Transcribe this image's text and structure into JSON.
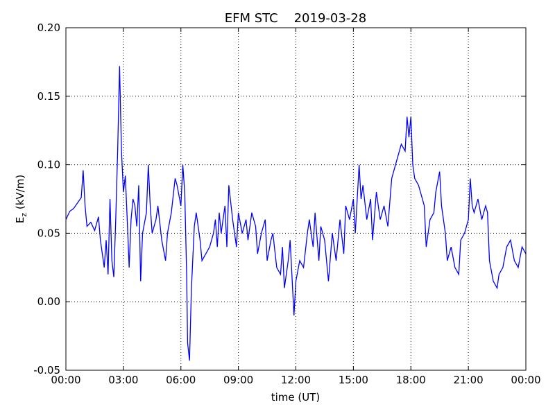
{
  "chart_data": {
    "type": "line",
    "title": "EFM STC    2019-03-28",
    "xlabel": "time (UT)",
    "ylabel": {
      "base": "E",
      "sub": "z",
      "unit": " (kV/m)"
    },
    "x": [
      0.0,
      0.2,
      0.4,
      0.6,
      0.8,
      0.9,
      1.0,
      1.1,
      1.3,
      1.5,
      1.7,
      1.8,
      2.0,
      2.1,
      2.2,
      2.3,
      2.4,
      2.5,
      2.6,
      2.7,
      2.8,
      2.9,
      3.0,
      3.1,
      3.2,
      3.3,
      3.4,
      3.5,
      3.6,
      3.7,
      3.8,
      3.9,
      4.0,
      4.2,
      4.3,
      4.4,
      4.5,
      4.7,
      4.8,
      5.0,
      5.2,
      5.3,
      5.5,
      5.7,
      5.8,
      6.0,
      6.1,
      6.2,
      6.3,
      6.35,
      6.45,
      6.55,
      6.7,
      6.8,
      6.9,
      7.0,
      7.1,
      7.3,
      7.5,
      7.7,
      7.8,
      7.9,
      8.0,
      8.1,
      8.3,
      8.4,
      8.5,
      8.7,
      8.9,
      9.0,
      9.2,
      9.4,
      9.5,
      9.7,
      9.9,
      10.0,
      10.2,
      10.4,
      10.5,
      10.7,
      10.8,
      11.0,
      11.2,
      11.3,
      11.4,
      11.6,
      11.7,
      11.9,
      12.0,
      12.2,
      12.4,
      12.6,
      12.7,
      12.9,
      13.0,
      13.2,
      13.3,
      13.5,
      13.7,
      13.9,
      14.1,
      14.3,
      14.5,
      14.6,
      14.8,
      15.0,
      15.1,
      15.3,
      15.4,
      15.5,
      15.7,
      15.9,
      16.0,
      16.2,
      16.4,
      16.6,
      16.8,
      17.0,
      17.1,
      17.3,
      17.5,
      17.7,
      17.8,
      17.9,
      18.0,
      18.1,
      18.2,
      18.4,
      18.5,
      18.7,
      18.8,
      19.0,
      19.2,
      19.3,
      19.5,
      19.6,
      19.7,
      19.8,
      19.9,
      20.1,
      20.3,
      20.5,
      20.6,
      20.8,
      21.0,
      21.1,
      21.2,
      21.3,
      21.5,
      21.7,
      21.9,
      22.0,
      22.1,
      22.3,
      22.5,
      22.6,
      22.8,
      23.0,
      23.2,
      23.4,
      23.6,
      23.8,
      24.0
    ],
    "series": [
      {
        "color": "#0000ff",
        "values": [
          0.06,
          0.066,
          0.068,
          0.072,
          0.076,
          0.096,
          0.07,
          0.055,
          0.058,
          0.052,
          0.062,
          0.045,
          0.025,
          0.045,
          0.02,
          0.075,
          0.03,
          0.018,
          0.06,
          0.11,
          0.172,
          0.11,
          0.08,
          0.092,
          0.06,
          0.025,
          0.06,
          0.075,
          0.07,
          0.055,
          0.085,
          0.015,
          0.05,
          0.065,
          0.1,
          0.07,
          0.05,
          0.06,
          0.07,
          0.045,
          0.03,
          0.05,
          0.065,
          0.09,
          0.085,
          0.07,
          0.1,
          0.08,
          0.02,
          -0.03,
          -0.043,
          0.01,
          0.055,
          0.065,
          0.055,
          0.045,
          0.03,
          0.035,
          0.04,
          0.05,
          0.06,
          0.04,
          0.065,
          0.05,
          0.07,
          0.04,
          0.085,
          0.06,
          0.04,
          0.065,
          0.05,
          0.06,
          0.045,
          0.065,
          0.055,
          0.035,
          0.05,
          0.06,
          0.03,
          0.045,
          0.05,
          0.025,
          0.02,
          0.04,
          0.01,
          0.03,
          0.045,
          -0.01,
          0.015,
          0.03,
          0.025,
          0.05,
          0.06,
          0.04,
          0.065,
          0.03,
          0.055,
          0.045,
          0.015,
          0.05,
          0.03,
          0.06,
          0.035,
          0.07,
          0.06,
          0.075,
          0.05,
          0.1,
          0.075,
          0.085,
          0.06,
          0.075,
          0.045,
          0.08,
          0.06,
          0.07,
          0.055,
          0.09,
          0.095,
          0.105,
          0.115,
          0.11,
          0.135,
          0.12,
          0.135,
          0.1,
          0.09,
          0.085,
          0.08,
          0.07,
          0.04,
          0.06,
          0.065,
          0.08,
          0.095,
          0.07,
          0.06,
          0.05,
          0.03,
          0.04,
          0.025,
          0.02,
          0.045,
          0.05,
          0.06,
          0.09,
          0.07,
          0.065,
          0.075,
          0.06,
          0.07,
          0.065,
          0.03,
          0.015,
          0.01,
          0.02,
          0.025,
          0.04,
          0.045,
          0.03,
          0.025,
          0.04,
          0.035
        ]
      }
    ],
    "xlim": [
      0,
      24
    ],
    "xticks": [
      {
        "value": 0,
        "label": "00:00"
      },
      {
        "value": 3,
        "label": "03:00"
      },
      {
        "value": 6,
        "label": "06:00"
      },
      {
        "value": 9,
        "label": "09:00"
      },
      {
        "value": 12,
        "label": "12:00"
      },
      {
        "value": 15,
        "label": "15:00"
      },
      {
        "value": 18,
        "label": "18:00"
      },
      {
        "value": 21,
        "label": "21:00"
      },
      {
        "value": 24,
        "label": "00:00"
      }
    ],
    "ylim": [
      -0.05,
      0.2
    ],
    "yticks": [
      -0.05,
      {
        "value": 0,
        "label": "0.00"
      },
      0.05,
      {
        "value": 0.1,
        "label": "0.10"
      },
      0.15,
      {
        "value": 0.2,
        "label": "0.20"
      }
    ],
    "grid": true
  }
}
